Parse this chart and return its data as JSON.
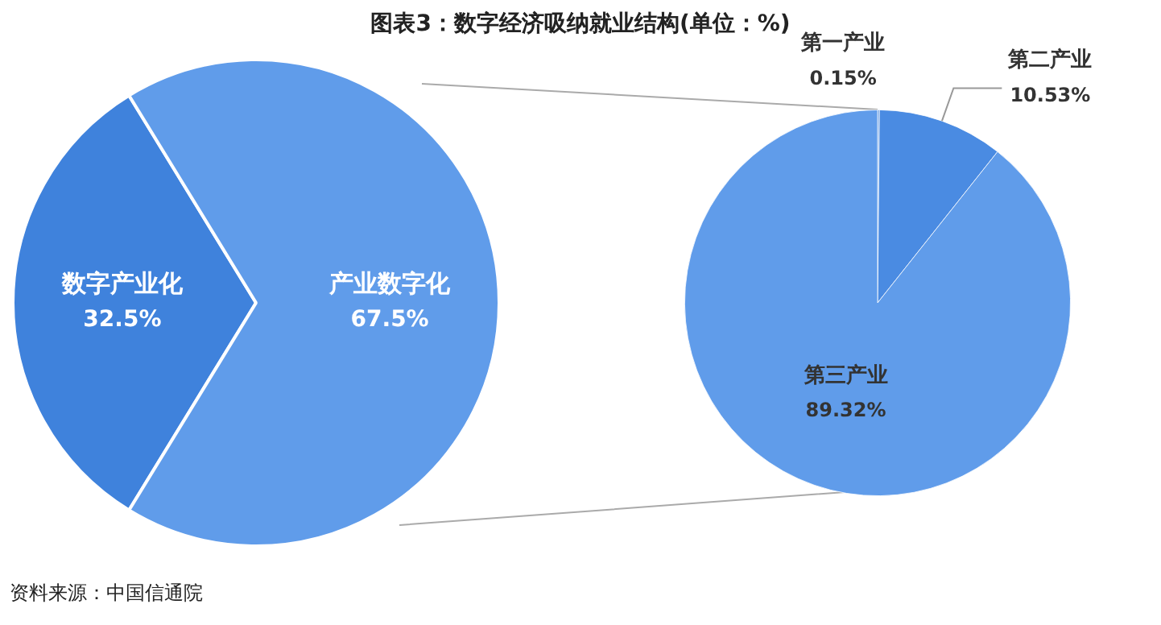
{
  "chart_data": [
    {
      "type": "pie",
      "title": "图表3：数字经济吸纳就业结构(单位：%)",
      "annotations": [
        "资料来源：中国信通院"
      ],
      "categories": [
        "数字产业化",
        "产业数字化"
      ],
      "values": [
        32.5,
        67.5
      ],
      "value_labels": [
        "32.5%",
        "67.5%"
      ],
      "colors": [
        "#3f82dc",
        "#609cea"
      ],
      "legend": false
    },
    {
      "type": "pie",
      "categories": [
        "第一产业",
        "第二产业",
        "第三产业"
      ],
      "values": [
        0.15,
        10.53,
        89.32
      ],
      "value_labels": [
        "0.15%",
        "10.53%",
        "89.32%"
      ],
      "colors": [
        "#3f82dc",
        "#4a8be2",
        "#609cea"
      ],
      "legend": false
    }
  ]
}
